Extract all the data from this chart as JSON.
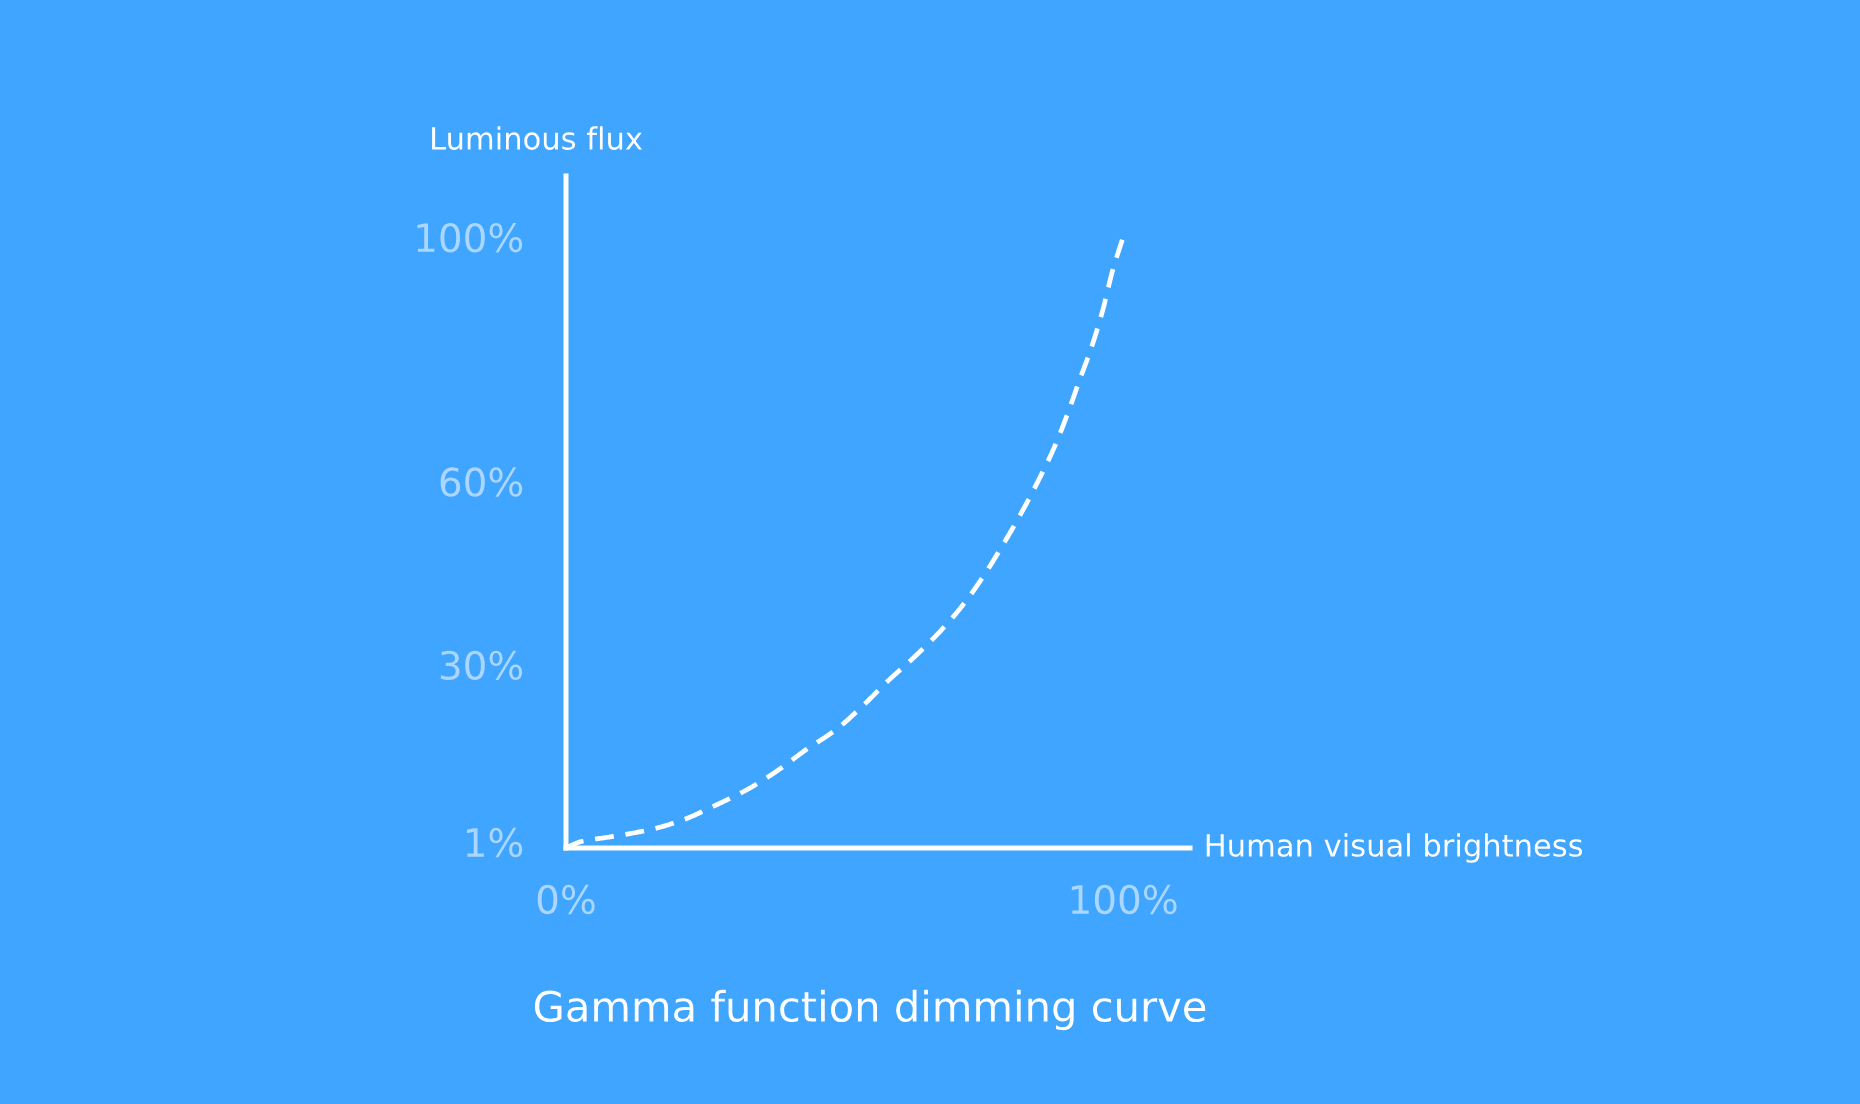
{
  "chart_data": {
    "type": "line",
    "title": "Gamma function dimming curve",
    "xlabel": "Human visual brightness",
    "ylabel": "Luminous flux",
    "x": [
      0,
      2.5,
      8.5,
      15.1,
      21.0,
      26.4,
      32.4,
      37.7,
      43.1,
      48.5,
      53.3,
      57.5,
      62.8,
      67.6,
      71.6,
      75.0,
      78.4,
      81.7,
      84.7,
      87.6,
      90.0,
      92.1,
      94.3,
      96.3,
      98.1,
      100
    ],
    "series": [
      {
        "color": "#ffffff",
        "values": [
          0,
          1.0,
          1.9,
          3.0,
          4.6,
          6.8,
          9.5,
          12.5,
          16.1,
          19.4,
          23.3,
          27.1,
          31.5,
          35.9,
          40.2,
          44.6,
          49.6,
          54.8,
          60.0,
          65.5,
          71.0,
          76.4,
          81.9,
          87.9,
          94.5,
          100
        ]
      }
    ],
    "xlim": [
      0,
      112
    ],
    "ylim": [
      0,
      110
    ],
    "xticks": [
      {
        "value": 0,
        "label": "0%"
      },
      {
        "value": 100,
        "label": "100%"
      }
    ],
    "yticks": [
      {
        "value": 1,
        "label": "1%"
      },
      {
        "value": 30,
        "label": "30%"
      },
      {
        "value": 60,
        "label": "60%"
      },
      {
        "value": 100,
        "label": "100%"
      }
    ],
    "grid": false,
    "legend": false,
    "marker": "none",
    "line_style": "dashed"
  }
}
